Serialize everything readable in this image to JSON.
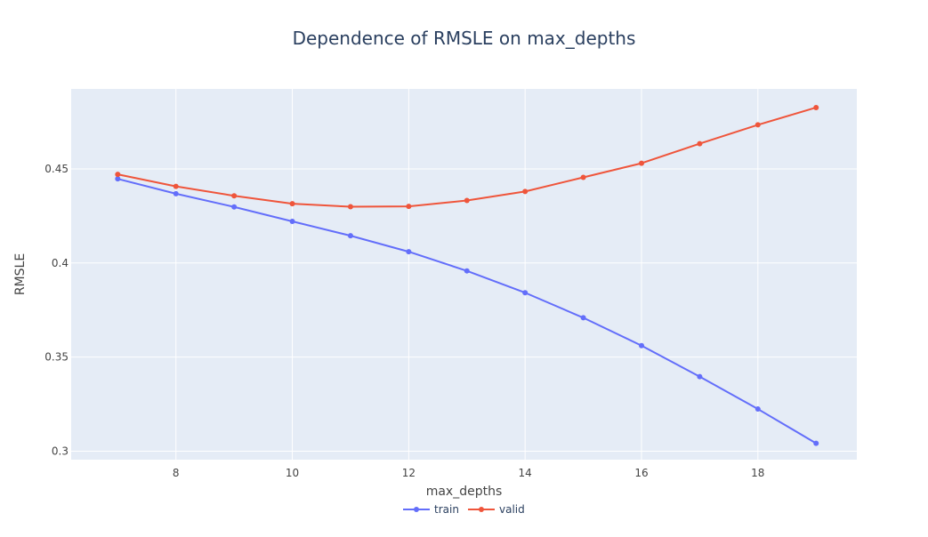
{
  "chart_data": {
    "type": "line",
    "title": "Dependence of RMSLE on max_depths",
    "xlabel": "max_depths",
    "ylabel": "RMSLE",
    "x": [
      7,
      8,
      9,
      10,
      11,
      12,
      13,
      14,
      15,
      16,
      17,
      18,
      19
    ],
    "xlim": [
      6.2,
      19.7
    ],
    "ylim": [
      0.2955,
      0.4925
    ],
    "xticks": [
      8,
      10,
      12,
      14,
      16,
      18
    ],
    "xtick_labels": [
      "8",
      "10",
      "12",
      "14",
      "16",
      "18"
    ],
    "yticks": [
      0.3,
      0.35,
      0.4,
      0.45
    ],
    "ytick_labels": [
      "0.3",
      "0.35",
      "0.4",
      "0.45"
    ],
    "grid": true,
    "legend_position": "bottom-center",
    "series": [
      {
        "name": "train",
        "color": "#636efa",
        "values": [
          0.4447,
          0.4368,
          0.4298,
          0.4221,
          0.4145,
          0.406,
          0.3958,
          0.3842,
          0.3709,
          0.3561,
          0.3396,
          0.3224,
          0.3042
        ]
      },
      {
        "name": "valid",
        "color": "#ef553b",
        "values": [
          0.4471,
          0.4407,
          0.4357,
          0.4315,
          0.4299,
          0.4301,
          0.4332,
          0.438,
          0.4455,
          0.453,
          0.4634,
          0.4734,
          0.4826
        ]
      }
    ],
    "colors": {
      "plot_background": "#e5ecf6",
      "gridline": "#ffffff",
      "text": "#444444",
      "title": "#2a3f5f"
    }
  }
}
